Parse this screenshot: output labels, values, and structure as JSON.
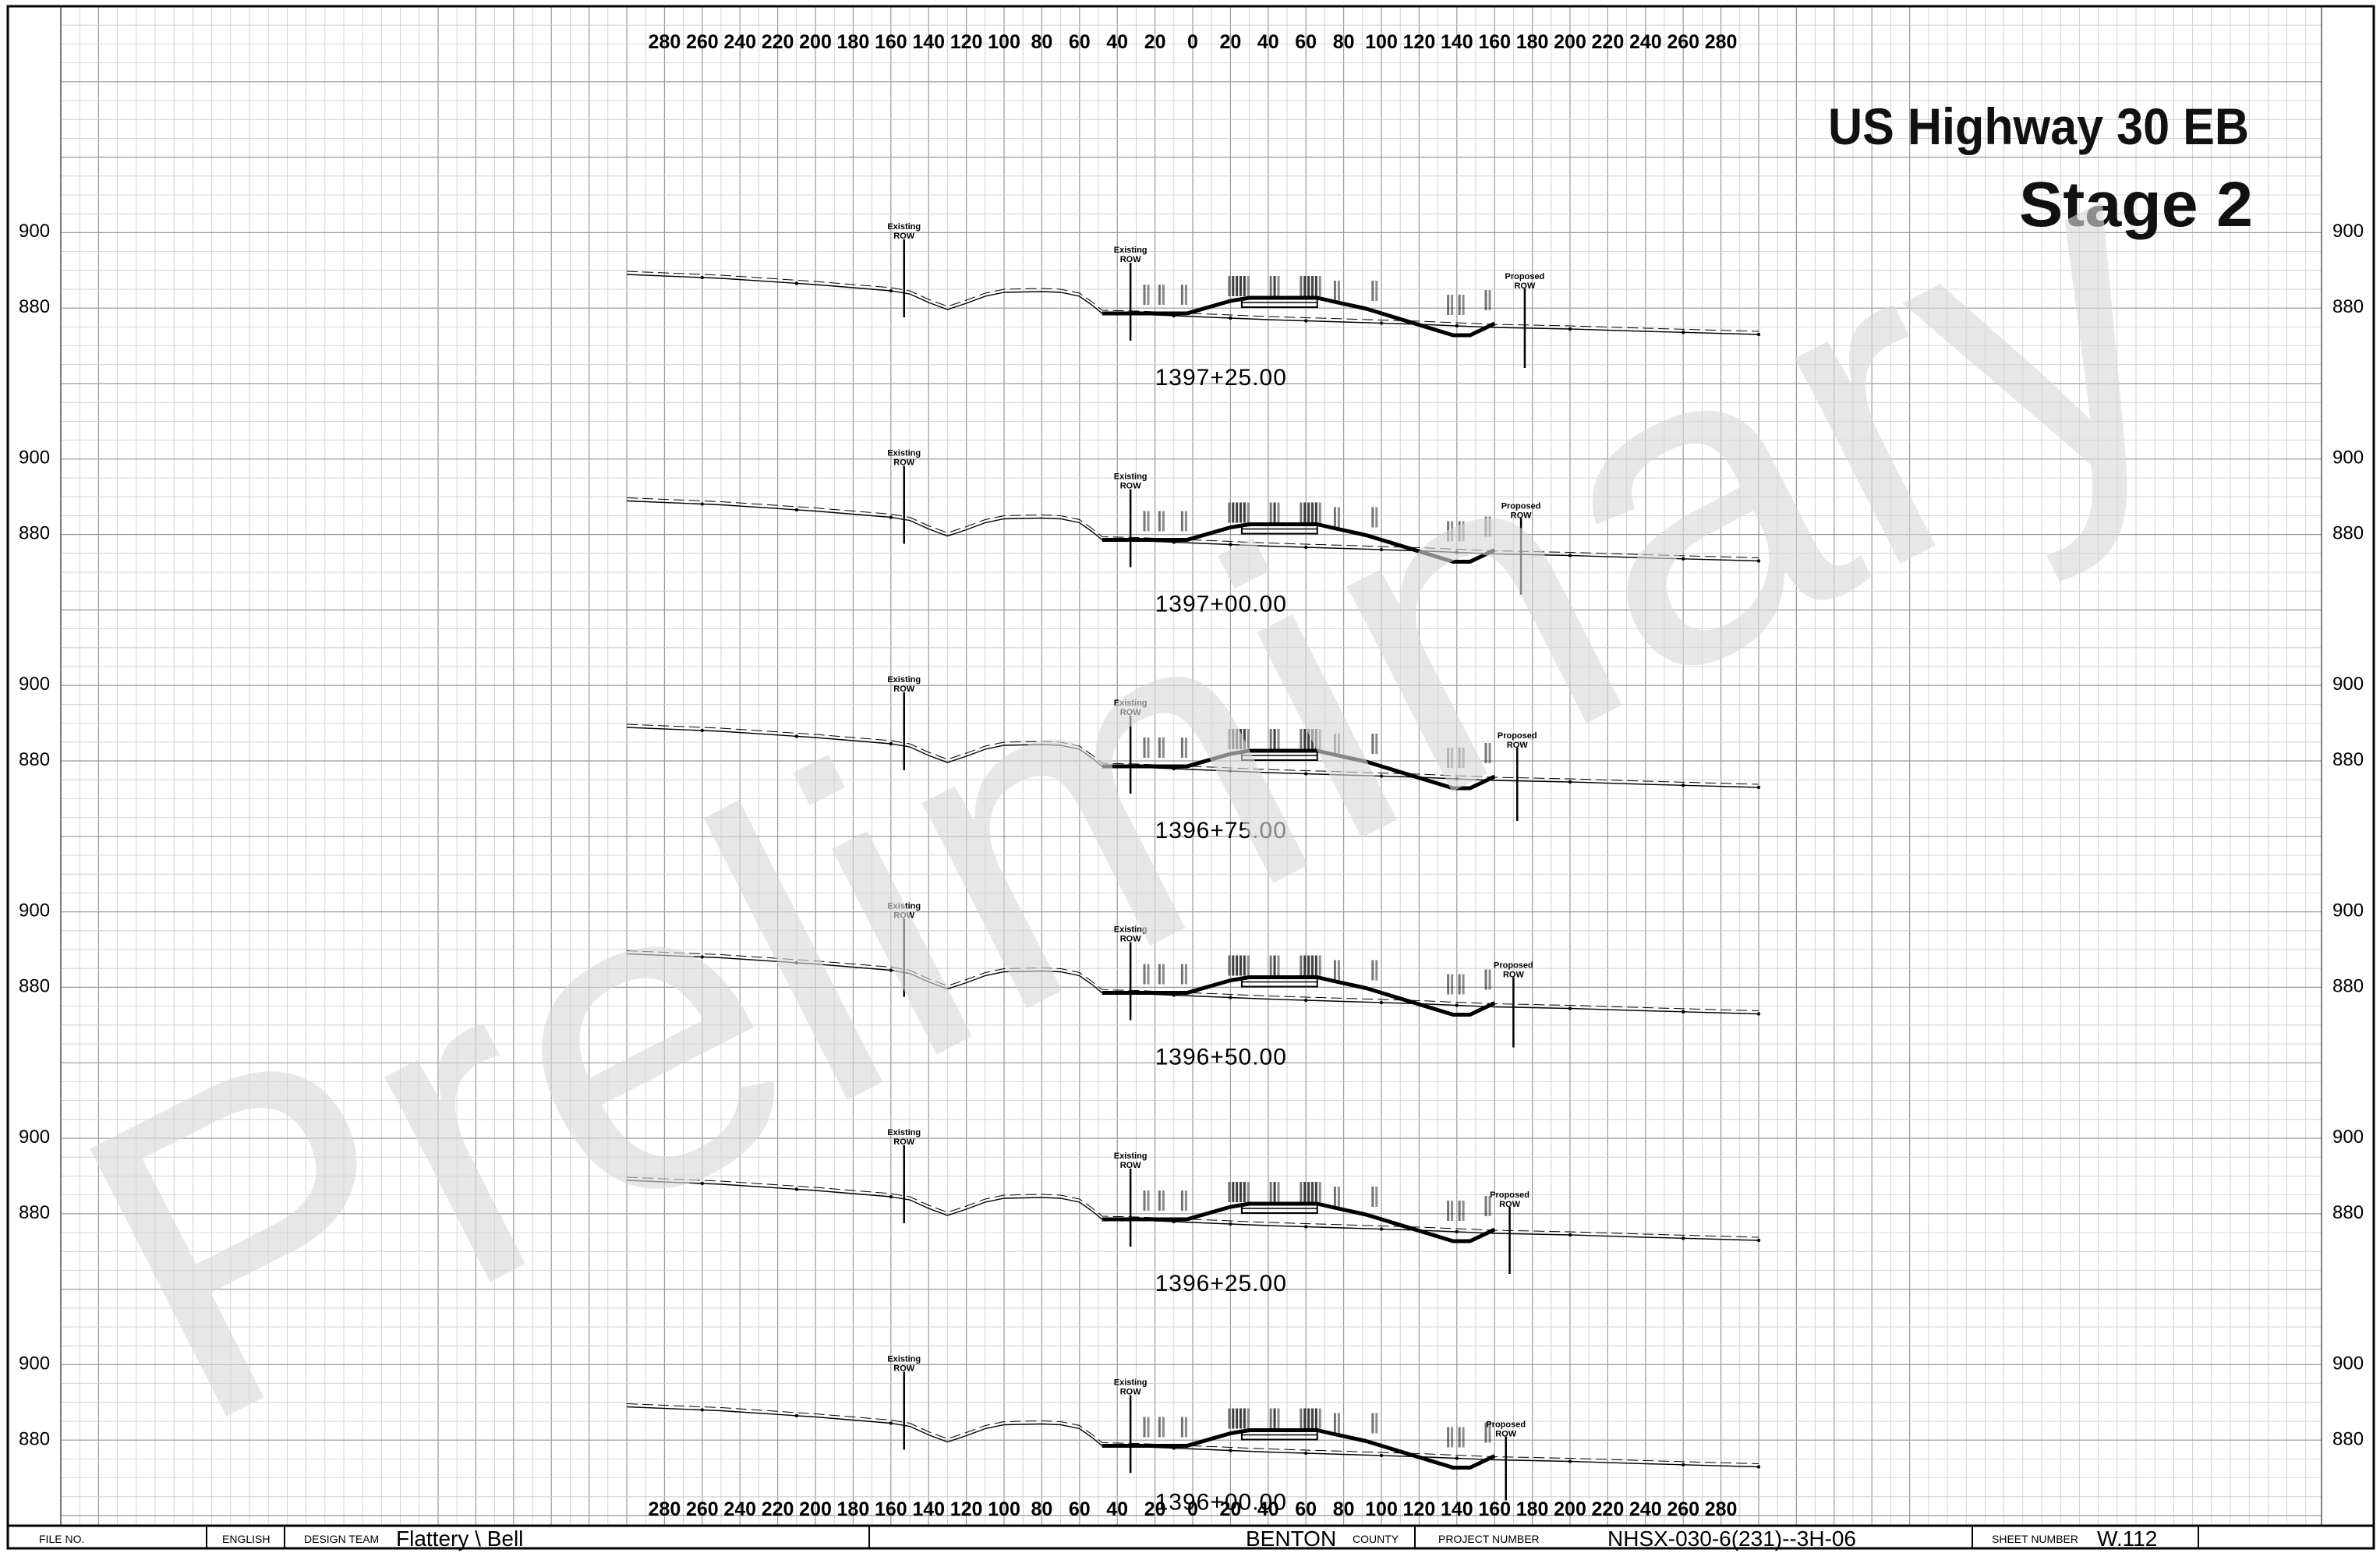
{
  "sheet": {
    "title_line1": "US Highway 30 EB",
    "title_line2": "Stage 2",
    "watermark": "Preliminary"
  },
  "offset_axis": {
    "labels": [
      "280",
      "260",
      "240",
      "220",
      "200",
      "180",
      "160",
      "140",
      "120",
      "100",
      "80",
      "60",
      "40",
      "20",
      "0",
      "20",
      "40",
      "60",
      "80",
      "100",
      "120",
      "140",
      "160",
      "180",
      "200",
      "220",
      "240",
      "260",
      "280"
    ]
  },
  "elevation_labels": [
    "900",
    "880"
  ],
  "row_labels": {
    "existing": [
      "Existing",
      "ROW"
    ],
    "proposed": [
      "Proposed",
      "ROW"
    ]
  },
  "sections": [
    {
      "station": "1397+25.00"
    },
    {
      "station": "1397+00.00"
    },
    {
      "station": "1396+75.00"
    },
    {
      "station": "1396+50.00"
    },
    {
      "station": "1396+25.00"
    },
    {
      "station": "1396+00.00"
    }
  ],
  "title_block": {
    "file_no_label": "FILE NO.",
    "units": "ENGLISH",
    "design_team_label": "DESIGN TEAM",
    "design_team": "Flattery \\ Bell",
    "county": "BENTON",
    "county_label": "COUNTY",
    "project_number_label": "PROJECT NUMBER",
    "project_number": "NHSX-030-6(231)--3H-06",
    "sheet_number_label": "SHEET NUMBER",
    "sheet_number": "W.112"
  }
}
